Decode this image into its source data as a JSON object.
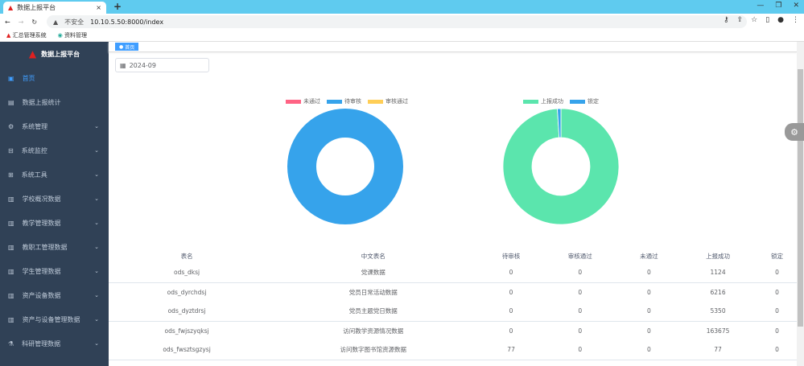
{
  "browser": {
    "tab_title": "数据上报平台",
    "close": "×",
    "new_tab": "+",
    "security": "不安全",
    "url": "10.10.5.50:8000/index",
    "bookmarks": [
      {
        "label": "汇总管理系统"
      },
      {
        "label": "资料管理"
      }
    ]
  },
  "sidebar": {
    "title": "数据上报平台",
    "items": [
      {
        "label": "首页",
        "icon": "dashboard-icon",
        "active": true,
        "expandable": false
      },
      {
        "label": "数据上报统计",
        "icon": "table-icon",
        "expandable": false
      },
      {
        "label": "系统管理",
        "icon": "gear-icon",
        "expandable": true
      },
      {
        "label": "系统监控",
        "icon": "monitor-icon",
        "expandable": true
      },
      {
        "label": "系统工具",
        "icon": "tool-icon",
        "expandable": true
      },
      {
        "label": "学校概况数据",
        "icon": "chart-icon",
        "expandable": true
      },
      {
        "label": "教学管理数据",
        "icon": "chart-icon",
        "expandable": true
      },
      {
        "label": "教职工管理数据",
        "icon": "chart-icon",
        "expandable": true
      },
      {
        "label": "学生管理数据",
        "icon": "chart-icon",
        "expandable": true
      },
      {
        "label": "资产设备数据",
        "icon": "chart-icon",
        "expandable": true
      },
      {
        "label": "资产与设备管理数据",
        "icon": "chart-icon",
        "expandable": true
      },
      {
        "label": "科研管理数据",
        "icon": "flask-icon",
        "expandable": true
      }
    ]
  },
  "tags": {
    "home": "首页"
  },
  "filter": {
    "month": "2024-09"
  },
  "chart_data": [
    {
      "type": "pie",
      "variant": "donut",
      "legend_position": "top",
      "series": [
        {
          "name": "未通过",
          "value": 0,
          "color": "#ff6384"
        },
        {
          "name": "待审核",
          "value": 77,
          "color": "#36a3eb"
        },
        {
          "name": "审核通过",
          "value": 0,
          "color": "#ffce56"
        }
      ]
    },
    {
      "type": "pie",
      "variant": "donut",
      "legend_position": "top",
      "series": [
        {
          "name": "上报成功",
          "value": 99,
          "color": "#5be5ad"
        },
        {
          "name": "锁定",
          "value": 1,
          "color": "#36a3eb"
        }
      ]
    }
  ],
  "table": {
    "headers": [
      "表名",
      "中文表名",
      "待审核",
      "审核通过",
      "未通过",
      "上报成功",
      "锁定"
    ],
    "rows": [
      [
        "ods_dksj",
        "党课数据",
        "0",
        "0",
        "0",
        "1124",
        "0"
      ],
      [
        "ods_dyrchdsj",
        "党员日常活动数据",
        "0",
        "0",
        "0",
        "6216",
        "0"
      ],
      [
        "ods_dyztdrsj",
        "党员主题党日数据",
        "0",
        "0",
        "0",
        "5350",
        "0"
      ],
      [
        "ods_fwjszyqksj",
        "访问教学资源情况数据",
        "0",
        "0",
        "0",
        "163675",
        "0"
      ],
      [
        "ods_fwsztsgzysj",
        "访问数字图书馆资源数据",
        "77",
        "0",
        "0",
        "77",
        "0"
      ]
    ]
  }
}
